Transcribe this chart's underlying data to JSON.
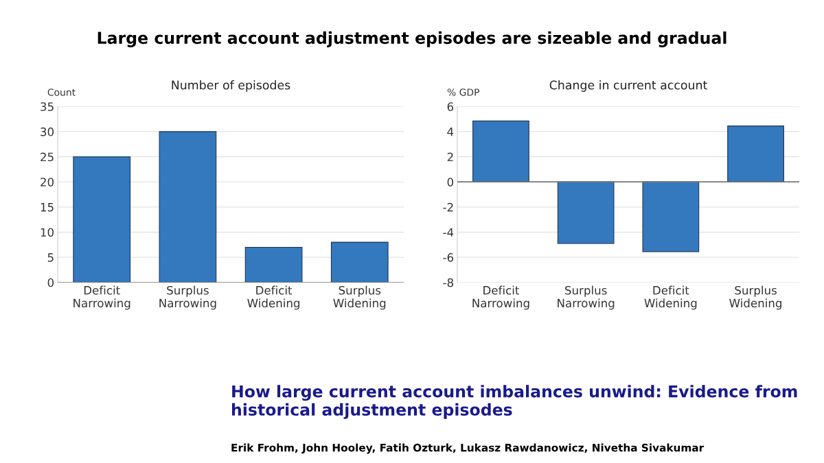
{
  "chart_data": [
    {
      "type": "bar",
      "title": "Number of episodes",
      "ylabel": "Count",
      "categories": [
        "Deficit\nNarrowing",
        "Surplus\nNarrowing",
        "Deficit\nWidening",
        "Surplus\nWidening"
      ],
      "values": [
        25,
        30,
        7,
        8
      ],
      "color": "#3478be",
      "ylim": [
        0,
        35
      ],
      "yticks": [
        0,
        5,
        10,
        15,
        20,
        25,
        30,
        35
      ],
      "grid": "y",
      "annotations": [
        "Large current account adjustment episodes are sizeable and gradual"
      ]
    },
    {
      "type": "bar",
      "title": "Change in current account",
      "ylabel": "% GDP",
      "categories": [
        "Deficit\nNarrowing",
        "Surplus\nNarrowing",
        "Deficit\nWidening",
        "Surplus\nWidening"
      ],
      "values": [
        4.85,
        -4.9,
        -5.55,
        4.45
      ],
      "color": "#3478be",
      "ylim": [
        -8,
        6
      ],
      "yticks": [
        {
          "value": -8,
          "label": "-8"
        },
        {
          "value": -6,
          "label": "-6"
        },
        {
          "value": -4,
          "label": "-4"
        },
        {
          "value": -2,
          "label": "-2"
        },
        0,
        2,
        4,
        6
      ],
      "grid": "y",
      "annotations": [
        "How large current account imbalances unwind: Evidence from historical adjustment episodes",
        "Erik Frohm, John Hooley, Fatih Ozturk, Lukasz Rawdanowicz, Nivetha Sivakumar"
      ]
    }
  ]
}
